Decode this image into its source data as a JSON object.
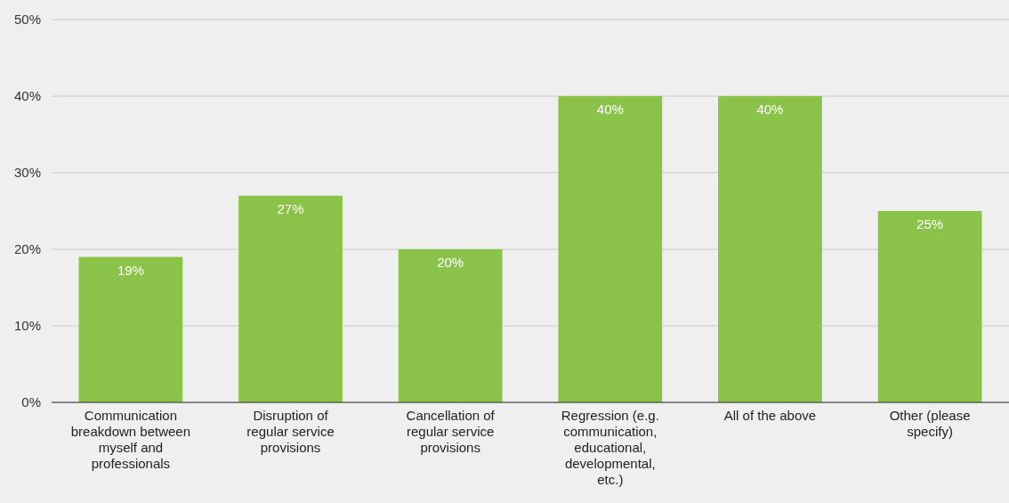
{
  "chart_data": {
    "type": "bar",
    "categories": [
      "Communication breakdown between myself and professionals",
      "Disruption of regular service provisions",
      "Cancellation of regular service provisions",
      "Regression (e.g. communication, educational, developmental, etc.)",
      "All of the above",
      "Other (please specify)"
    ],
    "values": [
      19,
      27,
      20,
      40,
      40,
      25
    ],
    "value_labels": [
      "19%",
      "27%",
      "20%",
      "40%",
      "40%",
      "25%"
    ],
    "color": "#8bc34a",
    "ylim": [
      0,
      50
    ],
    "yticks": [
      {
        "value": 0,
        "label": "0%"
      },
      {
        "value": 10,
        "label": "10%"
      },
      {
        "value": 20,
        "label": "20%"
      },
      {
        "value": 30,
        "label": "30%"
      },
      {
        "value": 40,
        "label": "40%"
      },
      {
        "value": 50,
        "label": "50%"
      }
    ],
    "grid": "y"
  }
}
